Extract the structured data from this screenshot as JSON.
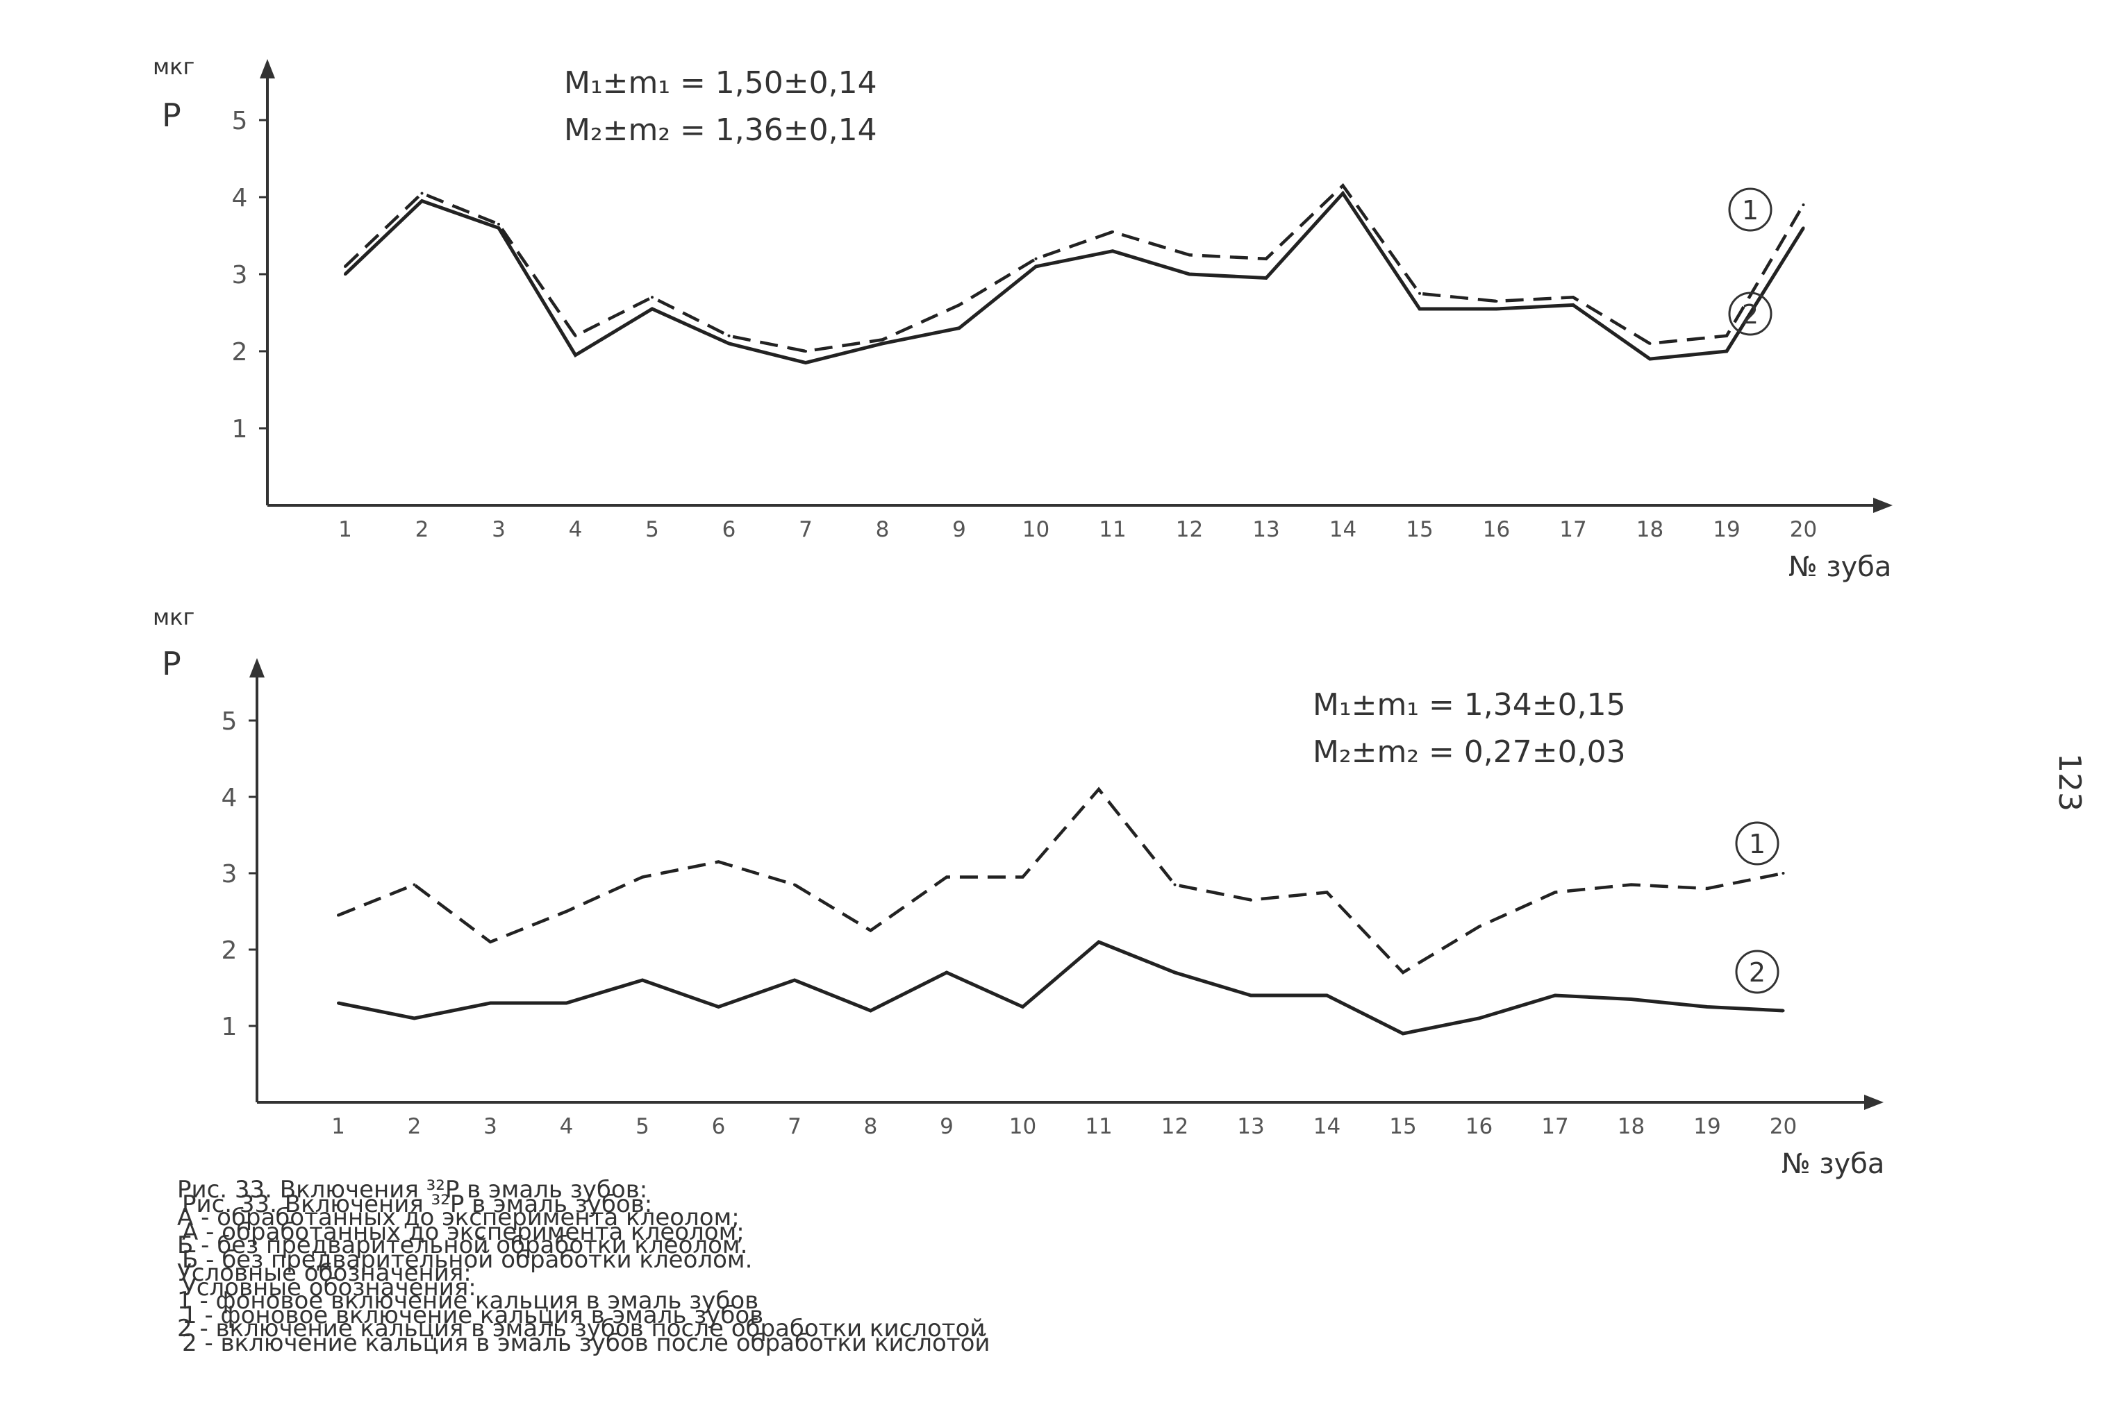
{
  "page_number": "123",
  "chart_data": [
    {
      "type": "line",
      "ylabel_unit": "мкг",
      "ylabel": "P",
      "xlabel": "№ зуба",
      "ylim": [
        0,
        5.6
      ],
      "yticks": [
        "1",
        "2",
        "3",
        "4",
        "5"
      ],
      "categories": [
        "1",
        "2",
        "3",
        "4",
        "5",
        "6",
        "7",
        "8",
        "9",
        "10",
        "11",
        "12",
        "13",
        "14",
        "15",
        "16",
        "17",
        "18",
        "19",
        "20"
      ],
      "stats": [
        "M₁±m₁ = 1,50±0,14",
        "M₂±m₂ = 1,36±0,14"
      ],
      "series": [
        {
          "marker": "1",
          "style": "dashed",
          "values": [
            3.1,
            4.05,
            3.65,
            2.2,
            2.7,
            2.2,
            2.0,
            2.15,
            2.6,
            3.2,
            3.55,
            3.25,
            3.2,
            4.15,
            2.75,
            2.65,
            2.7,
            2.1,
            2.2,
            3.9
          ]
        },
        {
          "marker": "2",
          "style": "solid",
          "values": [
            3.0,
            3.95,
            3.6,
            1.95,
            2.55,
            2.1,
            1.85,
            2.1,
            2.3,
            3.1,
            3.3,
            3.0,
            2.95,
            4.05,
            2.55,
            2.55,
            2.6,
            1.9,
            2.0,
            3.6
          ]
        }
      ]
    },
    {
      "type": "line",
      "ylabel_unit": "мкг",
      "ylabel": "P",
      "xlabel": "№ зуба",
      "ylim": [
        0,
        5.6
      ],
      "yticks": [
        "1",
        "2",
        "3",
        "4",
        "5"
      ],
      "categories": [
        "1",
        "2",
        "3",
        "4",
        "5",
        "6",
        "7",
        "8",
        "9",
        "10",
        "11",
        "12",
        "13",
        "14",
        "15",
        "16",
        "17",
        "18",
        "19",
        "20"
      ],
      "stats": [
        "M₁±m₁ = 1,34±0,15",
        "M₂±m₂ = 0,27±0,03"
      ],
      "series": [
        {
          "marker": "1",
          "style": "dashed",
          "values": [
            2.45,
            2.85,
            2.1,
            2.5,
            2.95,
            3.15,
            2.85,
            2.25,
            2.95,
            2.95,
            4.1,
            2.85,
            2.65,
            2.75,
            1.7,
            2.3,
            2.75,
            2.85,
            2.8,
            3.0
          ]
        },
        {
          "marker": "2",
          "style": "solid",
          "values": [
            1.3,
            1.1,
            1.3,
            1.3,
            1.6,
            1.25,
            1.6,
            1.2,
            1.7,
            1.25,
            2.1,
            1.7,
            1.4,
            1.4,
            0.9,
            1.1,
            1.4,
            1.35,
            1.25,
            1.2
          ]
        }
      ]
    }
  ],
  "caption": {
    "overlay_lines": [
      "Рис. 33. Включения ³²P в эмаль зубов:",
      "А - обработанных до эксперимента клеолом;",
      "Б - без предварительной обработки клеолом.",
      "Условные обозначения:",
      "1 - фоновое включение кальция в эмаль зубов",
      "2 - включение кальция в эмаль зубов после обработки кислотой"
    ],
    "base_lines": [
      "Рис. 33. Включения ³²P в эмаль зубов:",
      "А - обработанных до эксперимента клеолом;",
      "Б - без предварительной обработки клеолом.",
      "Условные обозначения:",
      "1 - фоновое включение кальция в эмаль зубов",
      "2 - включение кальция в эмаль зубов после обработки кислотой"
    ]
  }
}
